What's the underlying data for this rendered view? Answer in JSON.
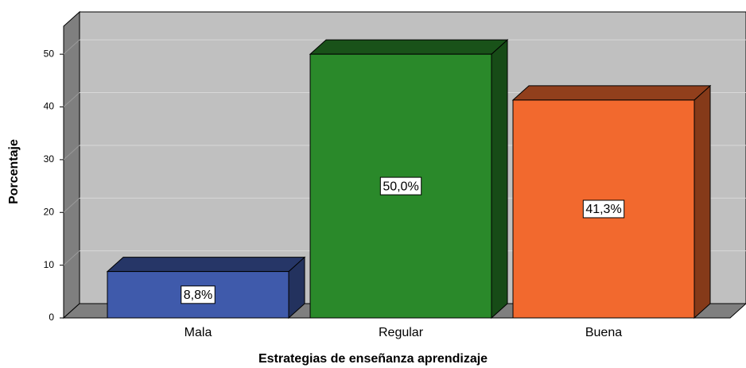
{
  "chart_data": {
    "type": "bar3d",
    "x_label": "Estrategias de enseñanza aprendizaje",
    "y_label": "Porcentaje",
    "categories": [
      "Mala",
      "Regular",
      "Buena"
    ],
    "values": [
      8.8,
      50.0,
      41.3
    ],
    "value_labels": [
      "8,8%",
      "50,0%",
      "41,3%"
    ],
    "colors": [
      "#3f5aab",
      "#2a892a",
      "#f2692e"
    ],
    "ylim": [
      0,
      55.3
    ],
    "yticks": [
      0,
      10,
      20,
      30,
      40,
      50
    ],
    "grid": true
  }
}
